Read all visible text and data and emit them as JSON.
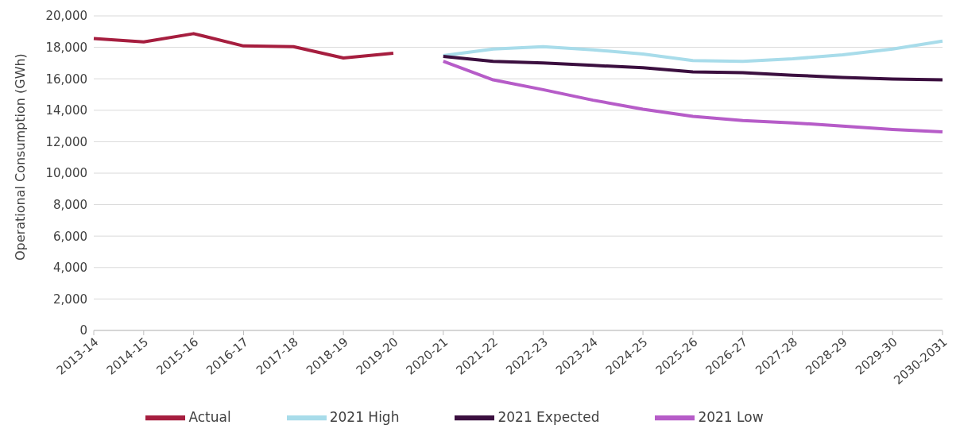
{
  "chart_data": {
    "type": "line",
    "ylabel": "Operational Consumption (GWh)",
    "categories": [
      "2013-14",
      "2014-15",
      "2015-16",
      "2016-17",
      "2017-18",
      "2018-19",
      "2019-20",
      "2020-21",
      "2021-22",
      "2022-23",
      "2023-24",
      "2024-25",
      "2025-26",
      "2026-27",
      "2027-28",
      "2028-29",
      "2029-30",
      "2030-2031"
    ],
    "series": [
      {
        "name": "Actual",
        "color": "#a61e3f",
        "values": [
          18560,
          18350,
          18870,
          18090,
          18040,
          17320,
          17630,
          null,
          null,
          null,
          null,
          null,
          null,
          null,
          null,
          null,
          null,
          null
        ]
      },
      {
        "name": "2021 High",
        "color": "#a8dcea",
        "values": [
          null,
          null,
          null,
          null,
          null,
          null,
          null,
          17470,
          17890,
          18040,
          17840,
          17580,
          17160,
          17110,
          17270,
          17530,
          17890,
          18400
        ]
      },
      {
        "name": "2021 Expected",
        "color": "#3b0f3f",
        "values": [
          null,
          null,
          null,
          null,
          null,
          null,
          null,
          17420,
          17110,
          17010,
          16850,
          16700,
          16440,
          16390,
          16230,
          16080,
          15980,
          15930
        ]
      },
      {
        "name": "2021 Low",
        "color": "#b65cc8",
        "values": [
          null,
          null,
          null,
          null,
          null,
          null,
          null,
          17110,
          15930,
          15310,
          14640,
          14070,
          13610,
          13350,
          13200,
          12990,
          12780,
          12630
        ]
      }
    ],
    "ylim": [
      0,
      20000
    ],
    "yticks": [
      0,
      {
        "value": 2000,
        "label": "2,000"
      },
      {
        "value": 4000,
        "label": "4,000"
      },
      {
        "value": 6000,
        "label": "6,000"
      },
      {
        "value": 8000,
        "label": "8,000"
      },
      {
        "value": 10000,
        "label": "10,000"
      },
      {
        "value": 12000,
        "label": "12,000"
      },
      {
        "value": 14000,
        "label": "14,000"
      },
      {
        "value": 16000,
        "label": "16,000"
      },
      {
        "value": 18000,
        "label": "18,000"
      },
      {
        "value": 20000,
        "label": "20,000"
      }
    ],
    "grid": "y",
    "legend": "bottom",
    "marker": "none",
    "line_style": "solid"
  }
}
